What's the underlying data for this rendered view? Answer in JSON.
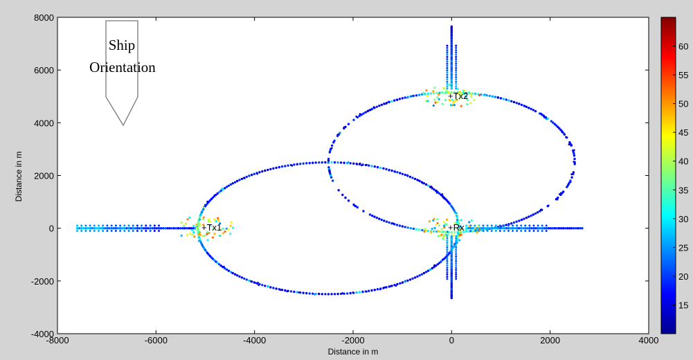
{
  "chart_data": {
    "type": "scatter",
    "title": "",
    "xlabel": "Distance in m",
    "ylabel": "Distance in m",
    "xlim": [
      -8000,
      4000
    ],
    "ylim": [
      -4000,
      8000
    ],
    "xticks": [
      "-8000",
      "-6000",
      "-4000",
      "-2000",
      "0",
      "2000",
      "4000"
    ],
    "yticks": [
      "-4000",
      "-2000",
      "0",
      "2000",
      "4000",
      "6000",
      "8000"
    ],
    "colorbar": {
      "range": [
        10,
        65
      ],
      "ticks": [
        "15",
        "20",
        "25",
        "30",
        "35",
        "40",
        "45",
        "50",
        "55",
        "60"
      ],
      "colormap": "jet"
    },
    "markers": [
      {
        "label": "Tx1",
        "x": -5000,
        "y": 0
      },
      {
        "label": "Tx2",
        "x": 0,
        "y": 5000
      },
      {
        "label": "Rx",
        "x": 0,
        "y": 0
      }
    ],
    "ellipses": [
      {
        "name": "Tx1-Rx",
        "cx": -2500,
        "cy": 0,
        "a": 2650,
        "b": 2500
      },
      {
        "name": "Tx2-Rx",
        "cx": 0,
        "cy": 2500,
        "a": 2500,
        "b": 2650
      }
    ],
    "spikes": [
      {
        "axis": "x",
        "from": -7600,
        "to": -5200,
        "y": 0
      },
      {
        "axis": "x",
        "from": 300,
        "to": 2650,
        "y": 0
      },
      {
        "axis": "y",
        "from": 5300,
        "to": 7650,
        "x": 0
      },
      {
        "axis": "y",
        "from": -300,
        "to": -2650,
        "x": 0
      }
    ],
    "annotation": {
      "text_line1": "Ship",
      "text_line2": "Orientation"
    }
  }
}
